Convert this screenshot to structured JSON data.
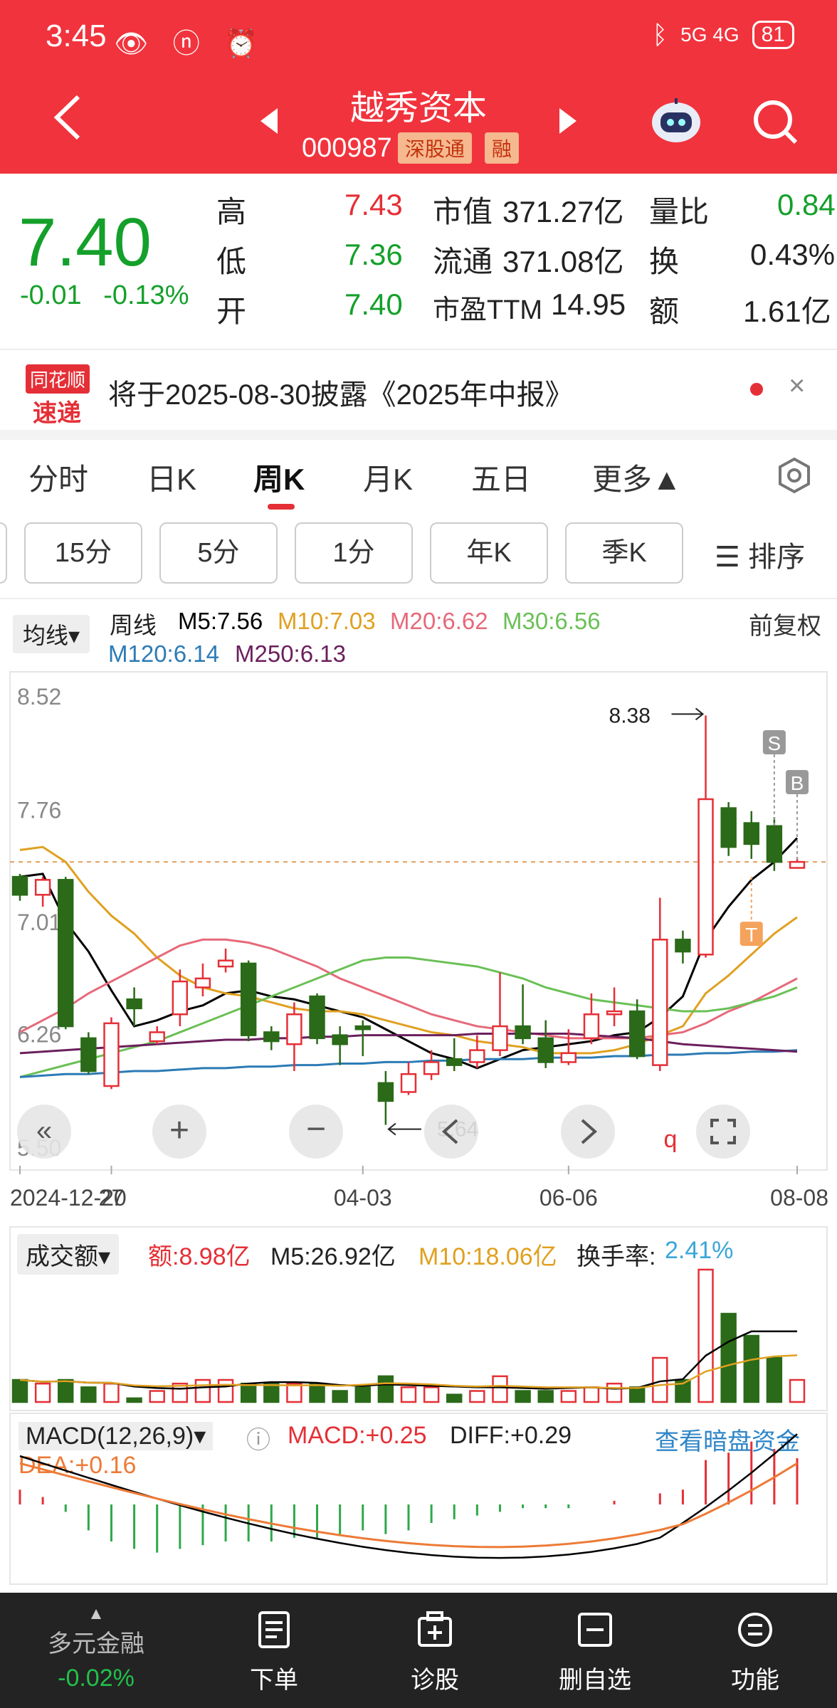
{
  "status": {
    "time": "3:45",
    "battery": "81",
    "network": "5G 4G"
  },
  "nav": {
    "title": "越秀资本",
    "code": "000987",
    "tag1": "深股通",
    "tag2": "融"
  },
  "quote": {
    "price": "7.40",
    "change": "-0.01",
    "change_pct": "-0.13%",
    "rows": [
      {
        "l1": "高",
        "v1": "7.43",
        "l2": "市值",
        "v2": "371.27亿",
        "l3": "量比",
        "v3": "0.84"
      },
      {
        "l1": "低",
        "v1": "7.36",
        "l2": "流通",
        "v2": "371.08亿",
        "l3": "换",
        "v3": "0.43%"
      },
      {
        "l1": "开",
        "v1": "7.40",
        "l2": "市盈TTM",
        "v2": "14.95",
        "l3": "额",
        "v3": "1.61亿"
      }
    ]
  },
  "notice": {
    "logo_top": "同花顺",
    "logo_bottom": "速递",
    "text": "将于2025-08-30披露《2025年中报》",
    "close": "×"
  },
  "tabs": [
    "分时",
    "日K",
    "周K",
    "月K",
    "五日",
    "更多▲"
  ],
  "subtabs": [
    "15分",
    "5分",
    "1分",
    "年K",
    "季K"
  ],
  "sort_label": "☰ 排序",
  "ma": {
    "dropdown": "均线▾",
    "period": "周线",
    "m5": "M5:7.56",
    "m10": "M10:7.03",
    "m20": "M20:6.62",
    "m30": "M30:6.56",
    "m120": "M120:6.14",
    "m250": "M250:6.13",
    "fq": "前复权"
  },
  "chart_data": {
    "type": "candlestick",
    "y_ticks": [
      "8.52",
      "7.76",
      "7.01",
      "6.26",
      "5.50"
    ],
    "x_ticks": [
      "2024-12-20",
      "27",
      "04-03",
      "06-06",
      "08-08"
    ],
    "high_label": "8.38",
    "low_label": "5.64",
    "markers": [
      "S",
      "B",
      "T"
    ],
    "candles": [
      [
        7.3,
        7.18,
        7.32,
        7.14
      ],
      [
        7.18,
        7.28,
        7.3,
        7.1
      ],
      [
        7.28,
        6.3,
        7.3,
        6.28
      ],
      [
        6.22,
        6.0,
        6.26,
        5.98
      ],
      [
        5.9,
        6.32,
        6.36,
        5.88
      ],
      [
        6.48,
        6.42,
        6.56,
        6.3
      ],
      [
        6.2,
        6.26,
        6.3,
        6.18
      ],
      [
        6.38,
        6.6,
        6.68,
        6.3
      ],
      [
        6.56,
        6.62,
        6.72,
        6.5
      ],
      [
        6.7,
        6.74,
        6.82,
        6.66
      ],
      [
        6.72,
        6.24,
        6.74,
        6.2
      ],
      [
        6.26,
        6.2,
        6.3,
        6.14
      ],
      [
        6.18,
        6.38,
        6.46,
        6.0
      ],
      [
        6.5,
        6.22,
        6.52,
        6.18
      ],
      [
        6.24,
        6.18,
        6.3,
        6.04
      ],
      [
        6.3,
        6.28,
        6.34,
        6.1
      ],
      [
        5.92,
        5.8,
        6.0,
        5.64
      ],
      [
        5.86,
        5.98,
        6.06,
        5.84
      ],
      [
        5.98,
        6.06,
        6.14,
        5.94
      ],
      [
        6.08,
        6.04,
        6.22,
        6.0
      ],
      [
        6.06,
        6.14,
        6.24,
        6.02
      ],
      [
        6.14,
        6.3,
        6.66,
        6.1
      ],
      [
        6.3,
        6.22,
        6.58,
        6.18
      ],
      [
        6.22,
        6.06,
        6.34,
        6.02
      ],
      [
        6.06,
        6.12,
        6.28,
        6.04
      ],
      [
        6.22,
        6.38,
        6.52,
        6.18
      ],
      [
        6.38,
        6.4,
        6.56,
        6.3
      ],
      [
        6.4,
        6.1,
        6.48,
        6.08
      ],
      [
        6.04,
        6.88,
        7.16,
        6.0
      ],
      [
        6.88,
        6.8,
        6.94,
        6.72
      ],
      [
        6.78,
        7.82,
        8.38,
        6.76
      ],
      [
        7.76,
        7.5,
        7.8,
        7.44
      ],
      [
        7.66,
        7.52,
        7.74,
        7.42
      ],
      [
        7.64,
        7.4,
        7.7,
        7.34
      ],
      [
        7.36,
        7.4,
        7.43,
        7.36
      ]
    ],
    "ma": {
      "M5": [
        7.3,
        7.32,
        7.0,
        6.8,
        6.54,
        6.3,
        6.34,
        6.4,
        6.44,
        6.52,
        6.54,
        6.5,
        6.48,
        6.44,
        6.4,
        6.36,
        6.28,
        6.2,
        6.12,
        6.08,
        6.02,
        6.08,
        6.14,
        6.16,
        6.18,
        6.2,
        6.24,
        6.26,
        6.36,
        6.5,
        6.88,
        7.1,
        7.28,
        7.4,
        7.56
      ],
      "M10": [
        7.48,
        7.5,
        7.4,
        7.2,
        7.04,
        6.92,
        6.76,
        6.64,
        6.56,
        6.52,
        6.5,
        6.46,
        6.42,
        6.4,
        6.4,
        6.38,
        6.34,
        6.3,
        6.26,
        6.24,
        6.2,
        6.18,
        6.16,
        6.12,
        6.12,
        6.12,
        6.14,
        6.18,
        6.24,
        6.3,
        6.52,
        6.64,
        6.78,
        6.92,
        7.03
      ],
      "M20": [
        6.26,
        6.34,
        6.42,
        6.52,
        6.6,
        6.68,
        6.76,
        6.84,
        6.88,
        6.88,
        6.86,
        6.82,
        6.76,
        6.7,
        6.62,
        6.56,
        6.5,
        6.44,
        6.38,
        6.34,
        6.3,
        6.28,
        6.26,
        6.24,
        6.22,
        6.22,
        6.22,
        6.22,
        6.24,
        6.26,
        6.32,
        6.4,
        6.46,
        6.54,
        6.62
      ],
      "M30": [
        5.96,
        6.0,
        6.04,
        6.08,
        6.12,
        6.16,
        6.2,
        6.26,
        6.32,
        6.38,
        6.44,
        6.5,
        6.56,
        6.62,
        6.68,
        6.74,
        6.76,
        6.76,
        6.74,
        6.72,
        6.7,
        6.66,
        6.62,
        6.56,
        6.52,
        6.48,
        6.46,
        6.44,
        6.42,
        6.4,
        6.4,
        6.42,
        6.46,
        6.5,
        6.56
      ],
      "M120": [
        5.96,
        5.97,
        5.98,
        5.98,
        5.99,
        6.0,
        6.0,
        6.01,
        6.02,
        6.02,
        6.03,
        6.03,
        6.04,
        6.04,
        6.05,
        6.05,
        6.06,
        6.06,
        6.07,
        6.07,
        6.08,
        6.08,
        6.08,
        6.09,
        6.09,
        6.09,
        6.1,
        6.1,
        6.11,
        6.11,
        6.12,
        6.12,
        6.13,
        6.13,
        6.14
      ],
      "M250": [
        6.12,
        6.13,
        6.14,
        6.15,
        6.16,
        6.17,
        6.18,
        6.19,
        6.2,
        6.21,
        6.21,
        6.22,
        6.22,
        6.23,
        6.23,
        6.24,
        6.24,
        6.24,
        6.24,
        6.24,
        6.25,
        6.25,
        6.25,
        6.25,
        6.25,
        6.24,
        6.23,
        6.22,
        6.2,
        6.18,
        6.17,
        6.16,
        6.15,
        6.14,
        6.13
      ]
    },
    "volume": [
      6,
      5,
      6,
      4,
      5,
      1,
      3,
      5,
      6,
      6,
      5,
      5,
      5,
      5,
      3,
      4,
      7,
      4,
      4,
      2,
      3,
      7,
      3,
      3,
      3,
      4,
      5,
      4,
      12,
      6,
      36,
      24,
      18,
      12,
      6
    ],
    "macd_hist": [
      0.08,
      0.04,
      -0.04,
      -0.14,
      -0.2,
      -0.24,
      -0.26,
      -0.24,
      -0.22,
      -0.2,
      -0.2,
      -0.2,
      -0.18,
      -0.18,
      -0.16,
      -0.14,
      -0.16,
      -0.14,
      -0.1,
      -0.08,
      -0.06,
      -0.04,
      -0.02,
      -0.02,
      -0.02,
      0.0,
      0.02,
      0.0,
      0.06,
      0.08,
      0.24,
      0.28,
      0.34,
      0.3,
      0.25
    ]
  },
  "volume": {
    "dropdown": "成交额▾",
    "e": "额:8.98亿",
    "m5": "M5:26.92亿",
    "m10": "M10:18.06亿",
    "turnover_label": "换手率:",
    "turnover": "2.41%"
  },
  "macd": {
    "dropdown": "MACD(12,26,9)▾",
    "macd": "MACD:+0.25",
    "diff": "DIFF:+0.29",
    "dea": "DEA:+0.16",
    "dark": "查看暗盘资金"
  },
  "bottom": {
    "first_label": "多元金融",
    "first_value": "-0.02%",
    "items": [
      "下单",
      "诊股",
      "删自选",
      "功能"
    ]
  },
  "colors": {
    "up": "#e52f36",
    "down": "#2a6a18",
    "brand": "#f1333d",
    "m5": "#000000",
    "m10": "#e0a020",
    "m20": "#e6697a",
    "m30": "#6ac055",
    "m120": "#2c7bb5",
    "m250": "#6b1f5c"
  }
}
